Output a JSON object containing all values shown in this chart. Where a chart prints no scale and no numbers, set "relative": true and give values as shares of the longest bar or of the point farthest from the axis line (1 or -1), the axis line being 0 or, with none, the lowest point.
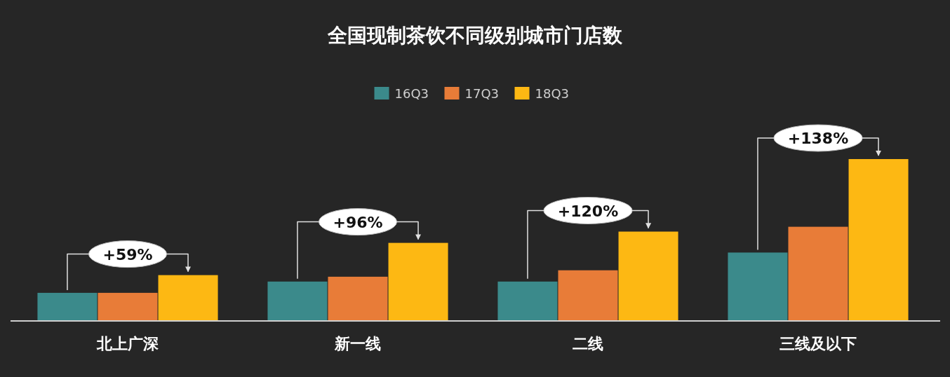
{
  "chart_data": {
    "type": "bar",
    "title": "全国现制茶饮不同级别城市门店数",
    "categories": [
      "北上广深",
      "新一线",
      "二线",
      "三线及以下"
    ],
    "relative": true,
    "legend": "top",
    "series": [
      {
        "name": "16Q3",
        "color": "#3b8a8b",
        "values": [
          0.17,
          0.24,
          0.24,
          0.42
        ]
      },
      {
        "name": "17Q3",
        "color": "#e87c38",
        "values": [
          0.17,
          0.27,
          0.31,
          0.58
        ]
      },
      {
        "name": "18Q3",
        "color": "#fdb813",
        "values": [
          0.28,
          0.48,
          0.55,
          1
        ]
      }
    ],
    "annotations": [
      "+59%",
      "+96%",
      "+120%",
      "+138%"
    ]
  }
}
